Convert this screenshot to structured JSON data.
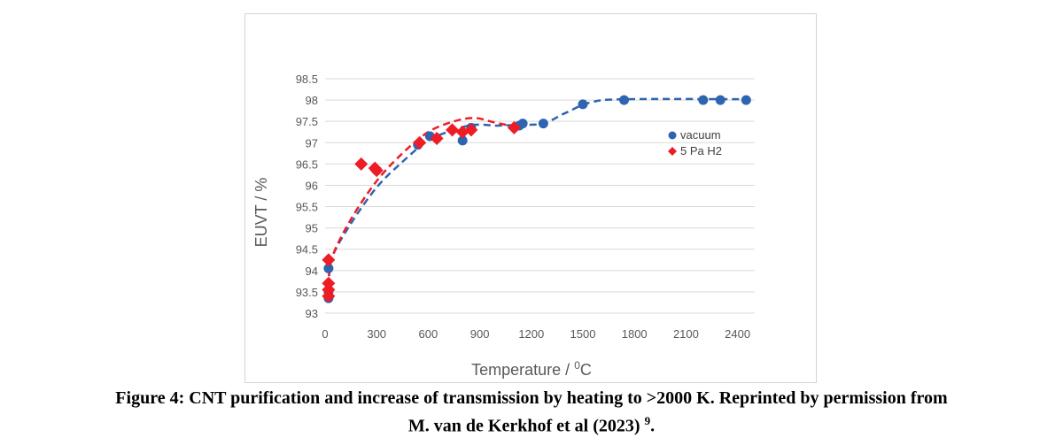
{
  "chart_data": {
    "type": "scatter",
    "xlabel": "Temperature / ",
    "xlabel_sup": "0",
    "xlabel_tail": "C",
    "ylabel": "EUVT / %",
    "xlim": [
      0,
      2500
    ],
    "ylim": [
      93,
      98.5
    ],
    "x_ticks": [
      "0",
      "300",
      "600",
      "900",
      "1200",
      "1500",
      "1800",
      "2100",
      "2400"
    ],
    "y_ticks": [
      "93",
      "93.5",
      "94",
      "94.5",
      "95",
      "95.5",
      "96",
      "96.5",
      "97",
      "97.5",
      "98",
      "98.5"
    ],
    "grid": "horizontal",
    "legend_position": "right",
    "series": [
      {
        "name": "vacuum",
        "marker": "circle",
        "color": "#2e64b0",
        "points": [
          [
            20,
            93.35
          ],
          [
            20,
            93.5
          ],
          [
            20,
            94.05
          ],
          [
            300,
            96.35
          ],
          [
            540,
            96.95
          ],
          [
            610,
            97.15
          ],
          [
            800,
            97.05
          ],
          [
            850,
            97.35
          ],
          [
            1130,
            97.4
          ],
          [
            1150,
            97.45
          ],
          [
            1270,
            97.45
          ],
          [
            1500,
            97.9
          ],
          [
            1740,
            98.0
          ],
          [
            2200,
            98.0
          ],
          [
            2300,
            98.0
          ],
          [
            2450,
            98.0
          ]
        ],
        "trend": [
          [
            20,
            93.6
          ],
          [
            40,
            94.3
          ],
          [
            150,
            95.1
          ],
          [
            300,
            95.95
          ],
          [
            450,
            96.55
          ],
          [
            600,
            97.05
          ],
          [
            750,
            97.3
          ],
          [
            870,
            97.42
          ],
          [
            1000,
            97.4
          ],
          [
            1130,
            97.42
          ],
          [
            1270,
            97.45
          ],
          [
            1400,
            97.7
          ],
          [
            1550,
            97.95
          ],
          [
            1750,
            98.02
          ],
          [
            2450,
            98.02
          ]
        ]
      },
      {
        "name": "5 Pa H2",
        "marker": "diamond",
        "color": "#ee1c25",
        "points": [
          [
            20,
            93.4
          ],
          [
            20,
            93.55
          ],
          [
            20,
            93.7
          ],
          [
            20,
            94.25
          ],
          [
            210,
            96.5
          ],
          [
            290,
            96.4
          ],
          [
            300,
            96.35
          ],
          [
            550,
            97.0
          ],
          [
            650,
            97.1
          ],
          [
            740,
            97.3
          ],
          [
            800,
            97.25
          ],
          [
            850,
            97.3
          ],
          [
            1100,
            97.35
          ]
        ],
        "trend": [
          [
            20,
            93.6
          ],
          [
            40,
            94.3
          ],
          [
            150,
            95.2
          ],
          [
            300,
            96.1
          ],
          [
            450,
            96.75
          ],
          [
            600,
            97.25
          ],
          [
            750,
            97.5
          ],
          [
            870,
            97.58
          ],
          [
            980,
            97.48
          ],
          [
            1100,
            97.38
          ]
        ]
      }
    ]
  },
  "caption": {
    "line1": "Figure 4: CNT purification and increase of transmission by heating to >2000 K. Reprinted by permission from",
    "line2": "M. van de Kerkhof et al (2023) ",
    "ref": "9",
    "line2_tail": "."
  }
}
